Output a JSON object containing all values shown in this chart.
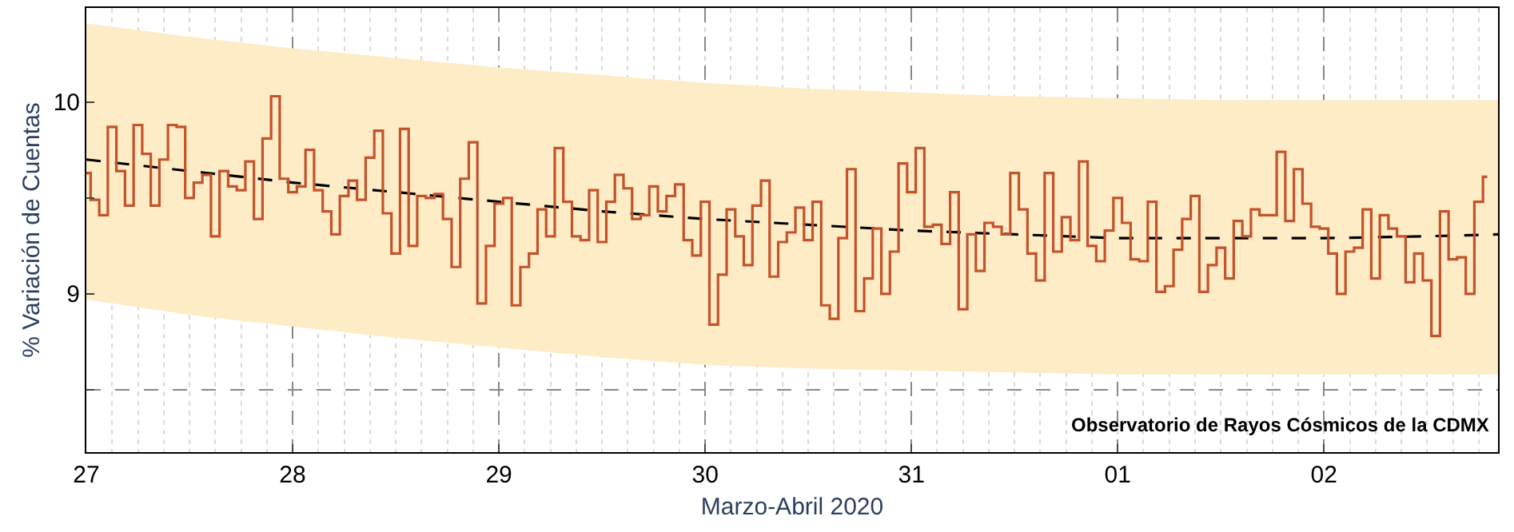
{
  "chart_data": {
    "type": "step",
    "xlabel": "Marzo-Abril 2020",
    "ylabel": "% Variación de Cuentas",
    "annotations": [
      "Observatorio de Rayos Cósmicos de la CDMX"
    ],
    "series": [
      {
        "color": "#c4522a",
        "x": [
          "2020-03-27T00:00",
          "2020-03-27T01:00",
          "2020-03-27T02:00",
          "2020-03-27T03:00",
          "2020-03-27T04:00",
          "2020-03-27T05:00",
          "2020-03-27T06:00",
          "2020-03-27T07:00",
          "2020-03-27T08:00",
          "2020-03-27T09:00",
          "2020-03-27T10:00",
          "2020-03-27T11:00",
          "2020-03-27T12:00",
          "2020-03-27T13:00",
          "2020-03-27T14:00",
          "2020-03-27T15:00",
          "2020-03-27T16:00",
          "2020-03-27T17:00",
          "2020-03-27T18:00",
          "2020-03-27T19:00",
          "2020-03-27T20:00",
          "2020-03-27T21:00",
          "2020-03-27T22:00",
          "2020-03-27T23:00",
          "2020-03-28T00:00",
          "2020-03-28T01:00",
          "2020-03-28T02:00",
          "2020-03-28T03:00",
          "2020-03-28T04:00",
          "2020-03-28T05:00",
          "2020-03-28T06:00",
          "2020-03-28T07:00",
          "2020-03-28T08:00",
          "2020-03-28T09:00",
          "2020-03-28T10:00",
          "2020-03-28T11:00",
          "2020-03-28T12:00",
          "2020-03-28T13:00",
          "2020-03-28T14:00",
          "2020-03-28T15:00",
          "2020-03-28T16:00",
          "2020-03-28T17:00",
          "2020-03-28T18:00",
          "2020-03-28T19:00",
          "2020-03-28T20:00",
          "2020-03-28T21:00",
          "2020-03-28T22:00",
          "2020-03-28T23:00",
          "2020-03-29T00:00",
          "2020-03-29T01:00",
          "2020-03-29T02:00",
          "2020-03-29T03:00",
          "2020-03-29T04:00",
          "2020-03-29T05:00",
          "2020-03-29T06:00",
          "2020-03-29T07:00",
          "2020-03-29T08:00",
          "2020-03-29T09:00",
          "2020-03-29T10:00",
          "2020-03-29T11:00",
          "2020-03-29T12:00",
          "2020-03-29T13:00",
          "2020-03-29T14:00",
          "2020-03-29T15:00",
          "2020-03-29T16:00",
          "2020-03-29T17:00",
          "2020-03-29T18:00",
          "2020-03-29T19:00",
          "2020-03-29T20:00",
          "2020-03-29T21:00",
          "2020-03-29T22:00",
          "2020-03-29T23:00",
          "2020-03-30T00:00",
          "2020-03-30T01:00",
          "2020-03-30T02:00",
          "2020-03-30T03:00",
          "2020-03-30T04:00",
          "2020-03-30T05:00",
          "2020-03-30T06:00",
          "2020-03-30T07:00",
          "2020-03-30T08:00",
          "2020-03-30T09:00",
          "2020-03-30T10:00",
          "2020-03-30T11:00",
          "2020-03-30T12:00",
          "2020-03-30T13:00",
          "2020-03-30T14:00",
          "2020-03-30T15:00",
          "2020-03-30T16:00",
          "2020-03-30T17:00",
          "2020-03-30T18:00",
          "2020-03-30T19:00",
          "2020-03-30T20:00",
          "2020-03-30T21:00",
          "2020-03-30T22:00",
          "2020-03-30T23:00",
          "2020-03-31T00:00",
          "2020-03-31T01:00",
          "2020-03-31T02:00",
          "2020-03-31T03:00",
          "2020-03-31T04:00",
          "2020-03-31T05:00",
          "2020-03-31T06:00",
          "2020-03-31T07:00",
          "2020-03-31T08:00",
          "2020-03-31T09:00",
          "2020-03-31T10:00",
          "2020-03-31T11:00",
          "2020-03-31T12:00",
          "2020-03-31T13:00",
          "2020-03-31T14:00",
          "2020-03-31T15:00",
          "2020-03-31T16:00",
          "2020-03-31T17:00",
          "2020-03-31T18:00",
          "2020-03-31T19:00",
          "2020-03-31T20:00",
          "2020-03-31T21:00",
          "2020-03-31T22:00",
          "2020-03-31T23:00",
          "2020-04-01T00:00",
          "2020-04-01T01:00",
          "2020-04-01T02:00",
          "2020-04-01T03:00",
          "2020-04-01T04:00",
          "2020-04-01T05:00",
          "2020-04-01T06:00",
          "2020-04-01T07:00",
          "2020-04-01T08:00",
          "2020-04-01T09:00",
          "2020-04-01T10:00",
          "2020-04-01T11:00",
          "2020-04-01T12:00",
          "2020-04-01T13:00",
          "2020-04-01T14:00",
          "2020-04-01T15:00",
          "2020-04-01T16:00",
          "2020-04-01T17:00",
          "2020-04-01T18:00",
          "2020-04-01T19:00",
          "2020-04-01T20:00",
          "2020-04-01T21:00",
          "2020-04-01T22:00",
          "2020-04-01T23:00",
          "2020-04-02T00:00",
          "2020-04-02T01:00",
          "2020-04-02T02:00",
          "2020-04-02T03:00",
          "2020-04-02T04:00",
          "2020-04-02T05:00",
          "2020-04-02T06:00",
          "2020-04-02T07:00",
          "2020-04-02T08:00",
          "2020-04-02T09:00",
          "2020-04-02T10:00",
          "2020-04-02T11:00",
          "2020-04-02T12:00",
          "2020-04-02T13:00",
          "2020-04-02T14:00",
          "2020-04-02T15:00",
          "2020-04-02T16:00",
          "2020-04-02T17:00",
          "2020-04-02T18:00",
          "2020-04-02T19:00"
        ],
        "values": [
          9.63,
          9.49,
          9.41,
          9.87,
          9.64,
          9.46,
          9.88,
          9.73,
          9.46,
          9.7,
          9.88,
          9.87,
          9.5,
          9.58,
          9.62,
          9.3,
          9.64,
          9.56,
          9.54,
          9.69,
          9.39,
          9.81,
          10.03,
          9.6,
          9.53,
          9.56,
          9.75,
          9.54,
          9.43,
          9.31,
          9.51,
          9.59,
          9.49,
          9.71,
          9.85,
          9.42,
          9.21,
          9.86,
          9.25,
          9.51,
          9.5,
          9.52,
          9.39,
          9.14,
          9.6,
          9.79,
          8.95,
          9.25,
          9.47,
          9.5,
          8.94,
          9.14,
          9.21,
          9.44,
          9.3,
          9.76,
          9.48,
          9.3,
          9.28,
          9.54,
          9.27,
          9.48,
          9.62,
          9.55,
          9.39,
          9.41,
          9.56,
          9.43,
          9.51,
          9.57,
          9.28,
          9.2,
          9.48,
          8.84,
          9.1,
          9.44,
          9.3,
          9.15,
          9.46,
          9.59,
          9.09,
          9.27,
          9.32,
          9.45,
          9.28,
          9.48,
          8.94,
          8.87,
          9.29,
          9.65,
          8.91,
          9.08,
          9.34,
          9.0,
          9.22,
          9.68,
          9.53,
          9.76,
          9.35,
          9.36,
          9.26,
          9.53,
          8.92,
          9.31,
          9.12,
          9.37,
          9.35,
          9.31,
          9.63,
          9.44,
          9.21,
          9.07,
          9.63,
          9.22,
          9.4,
          9.28,
          9.69,
          9.25,
          9.17,
          9.33,
          9.5,
          9.37,
          9.18,
          9.17,
          9.48,
          9.01,
          9.04,
          9.23,
          9.39,
          9.51,
          9.01,
          9.15,
          9.24,
          9.08,
          9.38,
          9.3,
          9.44,
          9.41,
          9.41,
          9.74,
          9.38,
          9.65,
          9.47,
          9.35,
          9.34,
          9.21,
          9.0,
          9.22,
          9.24,
          9.44,
          9.08,
          9.41,
          9.34,
          9.3,
          9.06,
          9.21,
          9.07,
          8.78,
          9.43,
          9.18,
          9.19,
          9.0,
          9.48,
          9.61
        ]
      },
      {
        "type": "line",
        "color": "#000000",
        "line_style": "dashed",
        "x": [
          "2020-03-27T00:00",
          "2020-03-27T12:00",
          "2020-03-28T00:00",
          "2020-03-28T12:00",
          "2020-03-29T00:00",
          "2020-03-29T12:00",
          "2020-03-30T00:00",
          "2020-03-30T12:00",
          "2020-03-31T00:00",
          "2020-03-31T12:00",
          "2020-04-01T00:00",
          "2020-04-01T12:00",
          "2020-04-02T00:00",
          "2020-04-02T12:00",
          "2020-04-02T20:15"
        ],
        "values": [
          9.7,
          9.64,
          9.58,
          9.53,
          9.48,
          9.43,
          9.39,
          9.36,
          9.33,
          9.31,
          9.29,
          9.29,
          9.29,
          9.3,
          9.31
        ],
        "lower": [
          8.97,
          8.89,
          8.83,
          8.77,
          8.72,
          8.67,
          8.63,
          8.61,
          8.6,
          8.59,
          8.58,
          8.58,
          8.58,
          8.58,
          8.58
        ],
        "upper": [
          10.41,
          10.34,
          10.28,
          10.23,
          10.18,
          10.14,
          10.1,
          10.07,
          10.05,
          10.03,
          10.02,
          10.01,
          10.01,
          10.01,
          10.01
        ]
      }
    ],
    "xlim": [
      "2020-03-27T00:00",
      "2020-04-02T20:15"
    ],
    "xticks": [
      {
        "value": "2020-03-27",
        "label": "27"
      },
      {
        "value": "2020-03-28",
        "label": "28"
      },
      {
        "value": "2020-03-29",
        "label": "29"
      },
      {
        "value": "2020-03-30",
        "label": "30"
      },
      {
        "value": "2020-03-31",
        "label": "31"
      },
      {
        "value": "2020-04-01",
        "label": "01"
      },
      {
        "value": "2020-04-02",
        "label": "02"
      }
    ],
    "ylim": [
      8.175,
      10.49
    ],
    "yticks": [
      {
        "value": 8.5,
        "label": null
      },
      9,
      {
        "value": 9.5,
        "label": null
      },
      10
    ],
    "grid": true,
    "marker": "none"
  }
}
